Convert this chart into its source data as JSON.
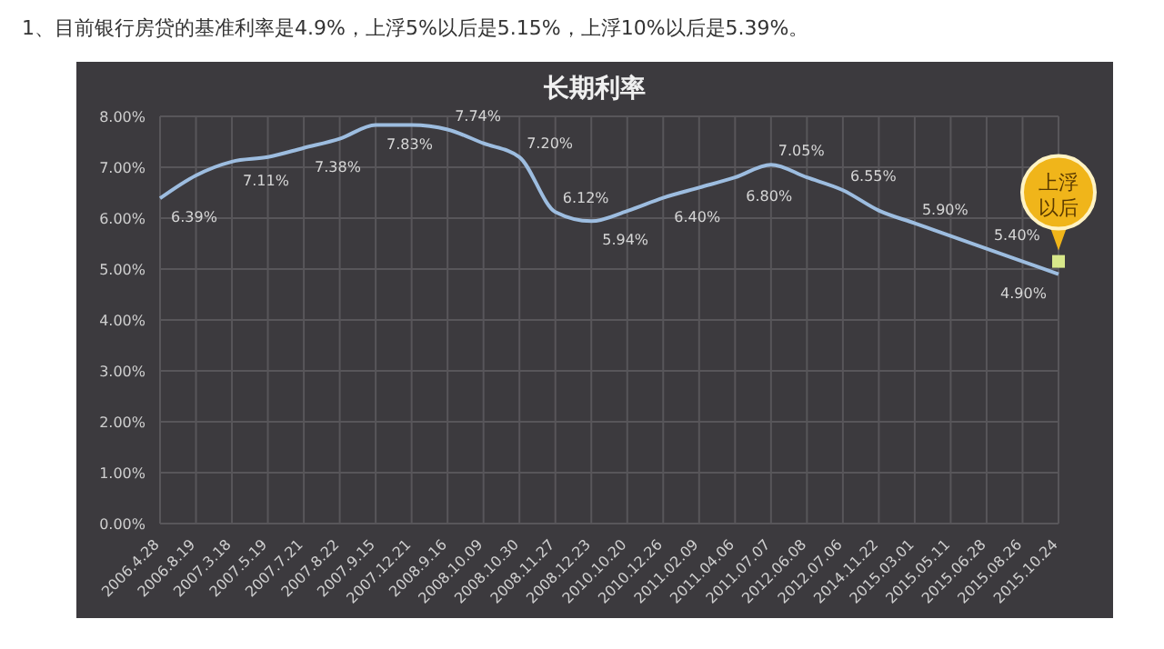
{
  "chart_data": {
    "type": "line",
    "title": "长期利率",
    "categories": [
      "2006.4.28",
      "2006.8.19",
      "2007.3.18",
      "2007.5.19",
      "2007.7.21",
      "2007.8.22",
      "2007.9.15",
      "2007.12.21",
      "2008.9.16",
      "2008.10.09",
      "2008.10.30",
      "2008.11.27",
      "2008.12.23",
      "2010.10.20",
      "2010.12.26",
      "2011.02.09",
      "2011.04.06",
      "2011.07.07",
      "2012.06.08",
      "2012.07.06",
      "2014.11.22",
      "2015.03.01",
      "2015.05.11",
      "2015.06.28",
      "2015.08.26",
      "2015.10.24"
    ],
    "series": [
      {
        "color": "#9dbde0",
        "values": [
          6.39,
          6.84,
          7.11,
          7.2,
          7.38,
          7.56,
          7.83,
          7.83,
          7.74,
          7.47,
          7.2,
          6.12,
          5.94,
          6.14,
          6.4,
          6.6,
          6.8,
          7.05,
          6.8,
          6.55,
          6.15,
          5.9,
          5.65,
          5.4,
          5.15,
          4.9
        ],
        "value_labels": [
          "6.39%",
          null,
          "7.11%",
          null,
          "7.38%",
          null,
          "7.83%",
          null,
          "7.74%",
          null,
          "7.20%",
          "6.12%",
          "5.94%",
          null,
          "6.40%",
          null,
          "6.80%",
          "7.05%",
          null,
          "6.55%",
          null,
          "5.90%",
          null,
          "5.40%",
          null,
          "4.90%"
        ]
      }
    ],
    "ylim": [
      0,
      8
    ],
    "yticks": [
      {
        "value": 0,
        "label": "0.00%"
      },
      {
        "value": 1,
        "label": "1.00%"
      },
      {
        "value": 2,
        "label": "2.00%"
      },
      {
        "value": 3,
        "label": "3.00%"
      },
      {
        "value": 4,
        "label": "4.00%"
      },
      {
        "value": 5,
        "label": "5.00%"
      },
      {
        "value": 6,
        "label": "6.00%"
      },
      {
        "value": 7,
        "label": "7.00%"
      },
      {
        "value": 8,
        "label": "8.00%"
      }
    ],
    "grid": true,
    "marker": "none",
    "line_style": "solid",
    "annotations": [
      "1、目前银行房贷的基准利率是4.9%，上浮5%以后是5.15%，上浮10%以后是5.39%。",
      {
        "text": "上浮以后",
        "x": "2015.10.24",
        "y": 5.15
      }
    ]
  }
}
